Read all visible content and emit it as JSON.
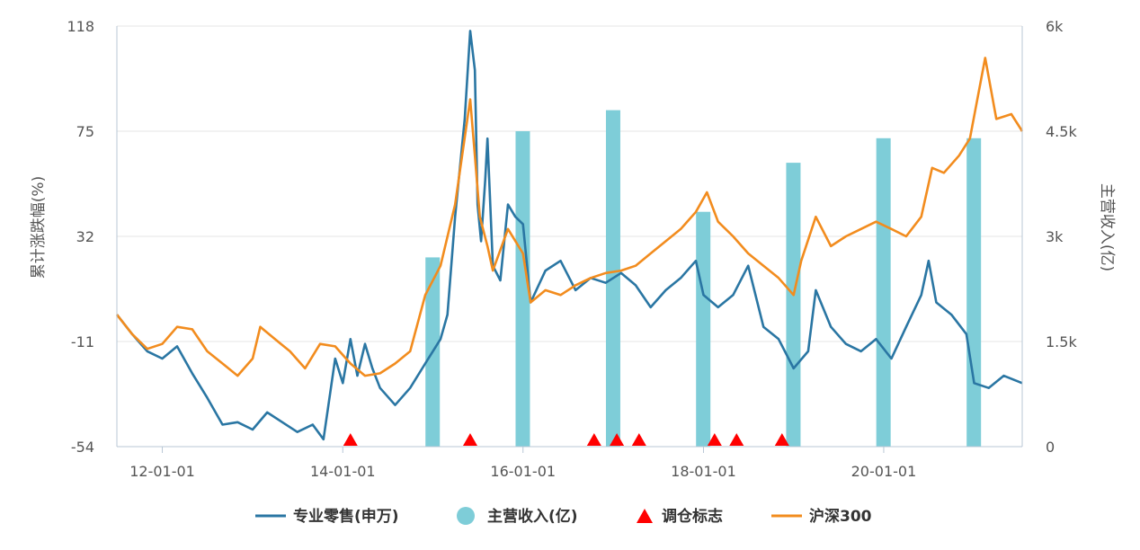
{
  "chart_data": {
    "type": "line",
    "x_axis": {
      "type": "date",
      "range": [
        "2011-07-01",
        "2021-07-15"
      ],
      "tick_labels": [
        "12-01-01",
        "14-01-01",
        "16-01-01",
        "18-01-01",
        "20-01-01"
      ],
      "tick_dates": [
        "2012-01-01",
        "2014-01-01",
        "2016-01-01",
        "2018-01-01",
        "2020-01-01"
      ]
    },
    "y_left": {
      "label": "累计涨跌幅(%)",
      "ylim": [
        -54,
        118
      ],
      "tick_labels": [
        "118",
        "75",
        "32",
        "-11",
        "-54"
      ],
      "tick_values": [
        118,
        75,
        32,
        -11,
        -54
      ]
    },
    "y_right": {
      "label": "主营收入(亿)",
      "ylim": [
        0,
        6000
      ],
      "tick_labels": [
        "6k",
        "4.5k",
        "3k",
        "1.5k",
        "0"
      ],
      "tick_values": [
        6000,
        4500,
        3000,
        1500,
        0
      ]
    },
    "grid": "horizontal",
    "legend_position": "bottom-center",
    "legend": [
      "专业零售(申万)",
      "主营收入(亿)",
      "调仓标志",
      "沪深300"
    ],
    "series": [
      {
        "name": "专业零售(申万)",
        "type": "line",
        "color": "#2a76a3",
        "points": [
          [
            "2011-07-01",
            0
          ],
          [
            "2011-09-01",
            -8
          ],
          [
            "2011-11-01",
            -15
          ],
          [
            "2012-01-01",
            -18
          ],
          [
            "2012-03-01",
            -13
          ],
          [
            "2012-05-01",
            -24
          ],
          [
            "2012-07-01",
            -34
          ],
          [
            "2012-09-01",
            -45
          ],
          [
            "2012-11-01",
            -44
          ],
          [
            "2013-01-01",
            -47
          ],
          [
            "2013-03-01",
            -40
          ],
          [
            "2013-05-01",
            -44
          ],
          [
            "2013-07-01",
            -48
          ],
          [
            "2013-09-01",
            -45
          ],
          [
            "2013-10-15",
            -51
          ],
          [
            "2013-12-01",
            -18
          ],
          [
            "2014-01-01",
            -28
          ],
          [
            "2014-02-01",
            -10
          ],
          [
            "2014-03-01",
            -25
          ],
          [
            "2014-04-01",
            -12
          ],
          [
            "2014-05-01",
            -22
          ],
          [
            "2014-06-01",
            -30
          ],
          [
            "2014-08-01",
            -37
          ],
          [
            "2014-10-01",
            -30
          ],
          [
            "2014-12-01",
            -20
          ],
          [
            "2015-02-01",
            -10
          ],
          [
            "2015-03-01",
            0
          ],
          [
            "2015-04-01",
            40
          ],
          [
            "2015-05-10",
            80
          ],
          [
            "2015-06-01",
            116
          ],
          [
            "2015-06-20",
            100
          ],
          [
            "2015-07-01",
            45
          ],
          [
            "2015-07-15",
            30
          ],
          [
            "2015-08-01",
            55
          ],
          [
            "2015-08-10",
            72
          ],
          [
            "2015-09-01",
            20
          ],
          [
            "2015-10-01",
            14
          ],
          [
            "2015-11-01",
            45
          ],
          [
            "2015-12-01",
            40
          ],
          [
            "2016-01-01",
            37
          ],
          [
            "2016-02-01",
            5
          ],
          [
            "2016-04-01",
            18
          ],
          [
            "2016-06-01",
            22
          ],
          [
            "2016-08-01",
            10
          ],
          [
            "2016-10-01",
            15
          ],
          [
            "2016-12-01",
            13
          ],
          [
            "2017-02-01",
            17
          ],
          [
            "2017-04-01",
            12
          ],
          [
            "2017-06-01",
            3
          ],
          [
            "2017-08-01",
            10
          ],
          [
            "2017-10-01",
            15
          ],
          [
            "2017-12-01",
            22
          ],
          [
            "2018-01-01",
            8
          ],
          [
            "2018-03-01",
            3
          ],
          [
            "2018-05-01",
            8
          ],
          [
            "2018-07-01",
            20
          ],
          [
            "2018-09-01",
            -5
          ],
          [
            "2018-11-01",
            -10
          ],
          [
            "2019-01-01",
            -22
          ],
          [
            "2019-03-01",
            -15
          ],
          [
            "2019-04-01",
            10
          ],
          [
            "2019-06-01",
            -5
          ],
          [
            "2019-08-01",
            -12
          ],
          [
            "2019-10-01",
            -15
          ],
          [
            "2019-12-01",
            -10
          ],
          [
            "2020-02-01",
            -18
          ],
          [
            "2020-04-01",
            -5
          ],
          [
            "2020-06-01",
            8
          ],
          [
            "2020-07-01",
            22
          ],
          [
            "2020-08-01",
            5
          ],
          [
            "2020-10-01",
            0
          ],
          [
            "2020-12-01",
            -8
          ],
          [
            "2021-01-01",
            -28
          ],
          [
            "2021-03-01",
            -30
          ],
          [
            "2021-05-01",
            -25
          ],
          [
            "2021-07-15",
            -28
          ]
        ]
      },
      {
        "name": "沪深300",
        "type": "line",
        "color": "#f28c1e",
        "points": [
          [
            "2011-07-01",
            0
          ],
          [
            "2011-09-01",
            -8
          ],
          [
            "2011-11-01",
            -14
          ],
          [
            "2012-01-01",
            -12
          ],
          [
            "2012-03-01",
            -5
          ],
          [
            "2012-05-01",
            -6
          ],
          [
            "2012-07-01",
            -15
          ],
          [
            "2012-09-01",
            -20
          ],
          [
            "2012-11-01",
            -25
          ],
          [
            "2013-01-01",
            -18
          ],
          [
            "2013-02-01",
            -5
          ],
          [
            "2013-04-01",
            -10
          ],
          [
            "2013-06-01",
            -15
          ],
          [
            "2013-08-01",
            -22
          ],
          [
            "2013-10-01",
            -12
          ],
          [
            "2013-12-01",
            -13
          ],
          [
            "2014-02-01",
            -20
          ],
          [
            "2014-04-01",
            -25
          ],
          [
            "2014-06-01",
            -24
          ],
          [
            "2014-08-01",
            -20
          ],
          [
            "2014-10-01",
            -15
          ],
          [
            "2014-12-01",
            8
          ],
          [
            "2015-02-01",
            20
          ],
          [
            "2015-04-01",
            45
          ],
          [
            "2015-06-01",
            88
          ],
          [
            "2015-06-20",
            65
          ],
          [
            "2015-07-10",
            40
          ],
          [
            "2015-08-10",
            28
          ],
          [
            "2015-09-01",
            18
          ],
          [
            "2015-11-01",
            35
          ],
          [
            "2016-01-01",
            25
          ],
          [
            "2016-02-01",
            5
          ],
          [
            "2016-04-01",
            10
          ],
          [
            "2016-06-01",
            8
          ],
          [
            "2016-08-01",
            12
          ],
          [
            "2016-10-01",
            15
          ],
          [
            "2016-12-01",
            17
          ],
          [
            "2017-02-01",
            18
          ],
          [
            "2017-04-01",
            20
          ],
          [
            "2017-06-01",
            25
          ],
          [
            "2017-08-01",
            30
          ],
          [
            "2017-10-01",
            35
          ],
          [
            "2017-12-01",
            42
          ],
          [
            "2018-01-15",
            50
          ],
          [
            "2018-03-01",
            38
          ],
          [
            "2018-05-01",
            32
          ],
          [
            "2018-07-01",
            25
          ],
          [
            "2018-09-01",
            20
          ],
          [
            "2018-11-01",
            15
          ],
          [
            "2019-01-01",
            8
          ],
          [
            "2019-02-01",
            22
          ],
          [
            "2019-04-01",
            40
          ],
          [
            "2019-06-01",
            28
          ],
          [
            "2019-08-01",
            32
          ],
          [
            "2019-10-01",
            35
          ],
          [
            "2019-12-01",
            38
          ],
          [
            "2020-02-01",
            35
          ],
          [
            "2020-04-01",
            32
          ],
          [
            "2020-06-01",
            40
          ],
          [
            "2020-07-15",
            60
          ],
          [
            "2020-09-01",
            58
          ],
          [
            "2020-11-01",
            65
          ],
          [
            "2020-12-15",
            72
          ],
          [
            "2021-02-15",
            105
          ],
          [
            "2021-04-01",
            80
          ],
          [
            "2021-06-01",
            82
          ],
          [
            "2021-07-15",
            75
          ]
        ]
      }
    ],
    "bars": {
      "name": "主营收入(亿)",
      "axis": "right",
      "color": "#7ecdd8",
      "points": [
        [
          "2014-12-31",
          2700
        ],
        [
          "2015-12-31",
          4500
        ],
        [
          "2016-12-31",
          4800
        ],
        [
          "2017-12-31",
          3350
        ],
        [
          "2018-12-31",
          4050
        ],
        [
          "2019-12-31",
          4400
        ],
        [
          "2020-12-31",
          4400
        ]
      ]
    },
    "markers": {
      "name": "调仓标志",
      "color": "#ff0000",
      "dates": [
        "2014-02-01",
        "2015-06-01",
        "2016-10-15",
        "2017-01-15",
        "2017-04-15",
        "2018-02-15",
        "2018-05-15",
        "2018-11-15"
      ]
    }
  }
}
